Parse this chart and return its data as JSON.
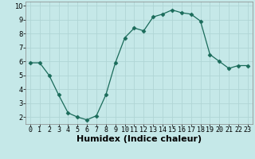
{
  "x": [
    0,
    1,
    2,
    3,
    4,
    5,
    6,
    7,
    8,
    9,
    10,
    11,
    12,
    13,
    14,
    15,
    16,
    17,
    18,
    19,
    20,
    21,
    22,
    23
  ],
  "y": [
    5.9,
    5.9,
    5.0,
    3.6,
    2.3,
    2.0,
    1.8,
    2.1,
    3.6,
    5.9,
    7.7,
    8.4,
    8.2,
    9.2,
    9.4,
    9.7,
    9.5,
    9.4,
    8.9,
    6.5,
    6.0,
    5.5,
    5.7,
    5.7
  ],
  "xlabel": "Humidex (Indice chaleur)",
  "xlim": [
    -0.5,
    23.5
  ],
  "ylim": [
    1.5,
    10.3
  ],
  "yticks": [
    2,
    3,
    4,
    5,
    6,
    7,
    8,
    9,
    10
  ],
  "xticks": [
    0,
    1,
    2,
    3,
    4,
    5,
    6,
    7,
    8,
    9,
    10,
    11,
    12,
    13,
    14,
    15,
    16,
    17,
    18,
    19,
    20,
    21,
    22,
    23
  ],
  "line_color": "#1a6b5a",
  "marker": "D",
  "marker_size": 2.5,
  "bg_color": "#c5e8e8",
  "grid_color": "#b0d5d5",
  "tick_label_fontsize": 6,
  "xlabel_fontsize": 8
}
